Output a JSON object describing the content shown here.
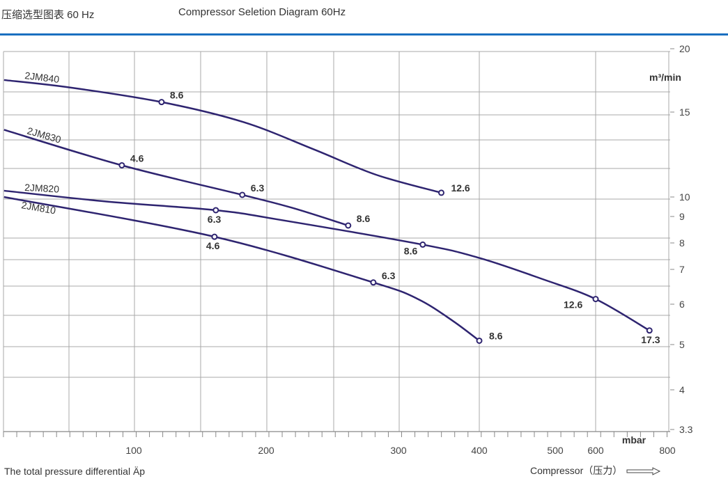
{
  "header": {
    "title_cn": "压缩选型图表 60 Hz",
    "title_en": "Compressor Seletion Diagram 60Hz"
  },
  "footer": {
    "xlabel": "The total pressure differential Äp",
    "direction_label": "Compressor（压力）"
  },
  "colors": {
    "accent_rule": "#1a6fc0",
    "curve": "#2e2470",
    "grid": "#a8a8a8"
  },
  "chart_data": {
    "type": "line",
    "title": "Compressor Seletion Diagram 60Hz",
    "xlabel": "The total pressure differential Äp",
    "x_unit": "mbar",
    "y_unit": "m³/min",
    "yscale": "log",
    "xlim": [
      0,
      800
    ],
    "ylim": [
      3.3,
      20
    ],
    "x_ticks": [
      100,
      200,
      300,
      400,
      500,
      600,
      800
    ],
    "y_ticks": [
      20,
      15,
      10,
      9,
      8,
      7,
      6,
      5,
      4,
      3.3
    ],
    "grid": true,
    "series": [
      {
        "name": "2JM840",
        "curve": [
          [
            2,
            17.3
          ],
          [
            52,
            16.7
          ],
          [
            121,
            15.6
          ],
          [
            183,
            14.2
          ],
          [
            236,
            12.5
          ],
          [
            283,
            11.1
          ],
          [
            353,
            10.2
          ]
        ],
        "points": [
          {
            "x": 121,
            "y": 15.6,
            "label": "8.6",
            "pos": "above-right"
          },
          {
            "x": 353,
            "y": 10.2,
            "label": "12.6",
            "pos": "right"
          }
        ]
      },
      {
        "name": "2JM830",
        "curve": [
          [
            2,
            13.7
          ],
          [
            91,
            11.6
          ],
          [
            182,
            10.1
          ],
          [
            220,
            9.5
          ],
          [
            262,
            8.75
          ]
        ],
        "points": [
          {
            "x": 91,
            "y": 11.6,
            "label": "4.6",
            "pos": "above-right"
          },
          {
            "x": 182,
            "y": 10.1,
            "label": "6.3",
            "pos": "above-right"
          },
          {
            "x": 262,
            "y": 8.75,
            "label": "8.6",
            "pos": "above-right"
          }
        ]
      },
      {
        "name": "2JM820",
        "curve": [
          [
            2,
            10.3
          ],
          [
            78,
            9.8
          ],
          [
            162,
            9.4
          ],
          [
            209,
            9.0
          ],
          [
            330,
            8.0
          ],
          [
            402,
            7.5
          ],
          [
            484,
            6.8
          ],
          [
            600,
            6.2
          ],
          [
            750,
            5.35
          ]
        ],
        "points": [
          {
            "x": 162,
            "y": 9.4,
            "label": "6.3",
            "pos": "below"
          },
          {
            "x": 330,
            "y": 8.0,
            "label": "8.6",
            "pos": "below-left"
          },
          {
            "x": 600,
            "y": 6.2,
            "label": "12.6",
            "pos": "left"
          },
          {
            "x": 750,
            "y": 5.35,
            "label": "17.3",
            "pos": "below"
          }
        ]
      },
      {
        "name": "2JM810",
        "curve": [
          [
            2,
            10.0
          ],
          [
            161,
            8.3
          ],
          [
            281,
            6.7
          ],
          [
            324,
            6.2
          ],
          [
            367,
            5.6
          ],
          [
            400,
            5.1
          ]
        ],
        "points": [
          {
            "x": 161,
            "y": 8.3,
            "label": "4.6",
            "pos": "below"
          },
          {
            "x": 281,
            "y": 6.7,
            "label": "6.3",
            "pos": "above-right"
          },
          {
            "x": 400,
            "y": 5.1,
            "label": "8.6",
            "pos": "right"
          }
        ]
      }
    ]
  }
}
